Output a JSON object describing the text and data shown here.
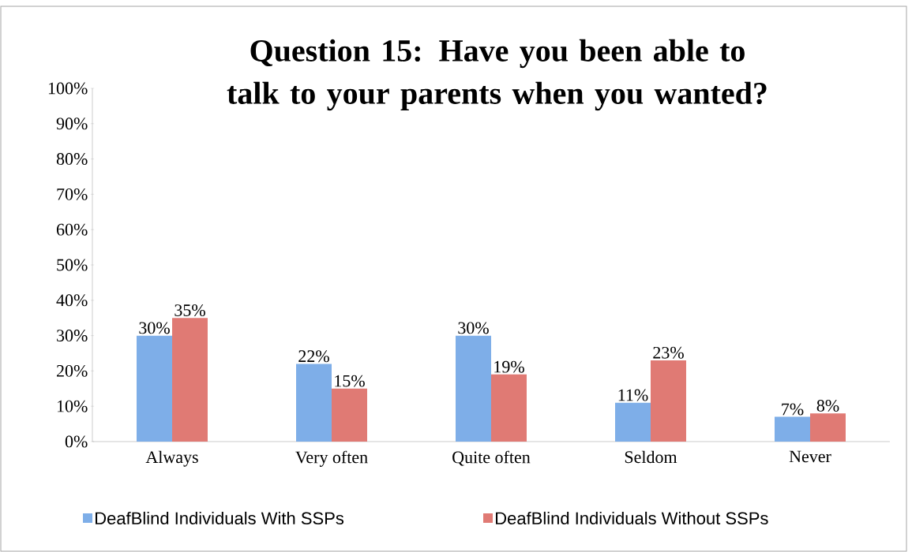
{
  "chart_data": {
    "type": "bar",
    "title": "Question 15: Have you been able to talk to your parents when you wanted?",
    "categories": [
      "Always",
      "Very often",
      "Quite often",
      "Seldom",
      "Never"
    ],
    "series": [
      {
        "name": "DeafBlind Individuals With SSPs",
        "color": "#7eaee8",
        "values": [
          30,
          22,
          30,
          11,
          7
        ],
        "value_labels": [
          "30%",
          "22%",
          "30%",
          "11%",
          "7%"
        ]
      },
      {
        "name": "DeafBlind Individuals Without SSPs",
        "color": "#e07a74",
        "values": [
          35,
          15,
          19,
          23,
          8
        ],
        "value_labels": [
          "35%",
          "15%",
          "19%",
          "23%",
          "8%"
        ]
      }
    ],
    "ylim": [
      0,
      100
    ],
    "yticks": [
      {
        "value": 0,
        "label": "0%"
      },
      {
        "value": 10,
        "label": "10%"
      },
      {
        "value": 20,
        "label": "20%"
      },
      {
        "value": 30,
        "label": "30%"
      },
      {
        "value": 40,
        "label": "40%"
      },
      {
        "value": 50,
        "label": "50%"
      },
      {
        "value": 60,
        "label": "60%"
      },
      {
        "value": 70,
        "label": "70%"
      },
      {
        "value": 80,
        "label": "80%"
      },
      {
        "value": 90,
        "label": "90%"
      },
      {
        "value": 100,
        "label": "100%"
      }
    ],
    "legend": "bottom"
  }
}
